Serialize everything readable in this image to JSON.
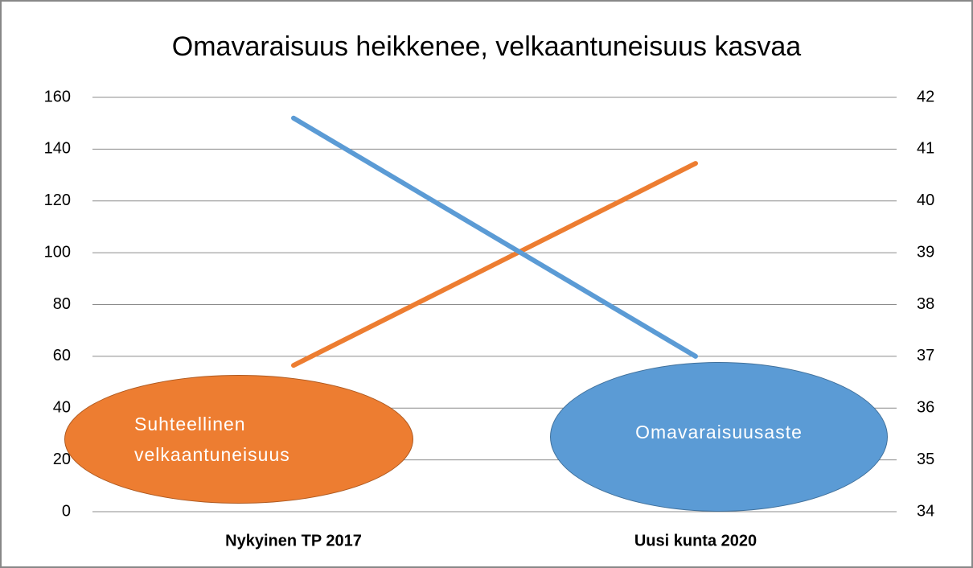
{
  "chart_data": {
    "type": "line",
    "title": "Omavaraisuus heikkenee, velkaantuneisuus kasvaa",
    "categories": [
      "Nykyinen TP 2017",
      "Uusi kunta 2020"
    ],
    "series": [
      {
        "name": "Suhteellinen velkaantuneisuus",
        "color": "#ed7d31",
        "values": [
          56.5,
          134.5
        ]
      },
      {
        "name": "Omavaraisuusaste",
        "color": "#5b9bd5",
        "values": [
          41.6,
          37.0
        ],
        "axis": "y2"
      }
    ],
    "ylim": [
      0,
      160
    ],
    "yticks": [
      0,
      20,
      40,
      60,
      80,
      100,
      120,
      140,
      160
    ],
    "y2lim": [
      34,
      42
    ],
    "y2ticks": [
      34,
      35,
      36,
      37,
      38,
      39,
      40,
      41,
      42
    ],
    "grid": true
  }
}
